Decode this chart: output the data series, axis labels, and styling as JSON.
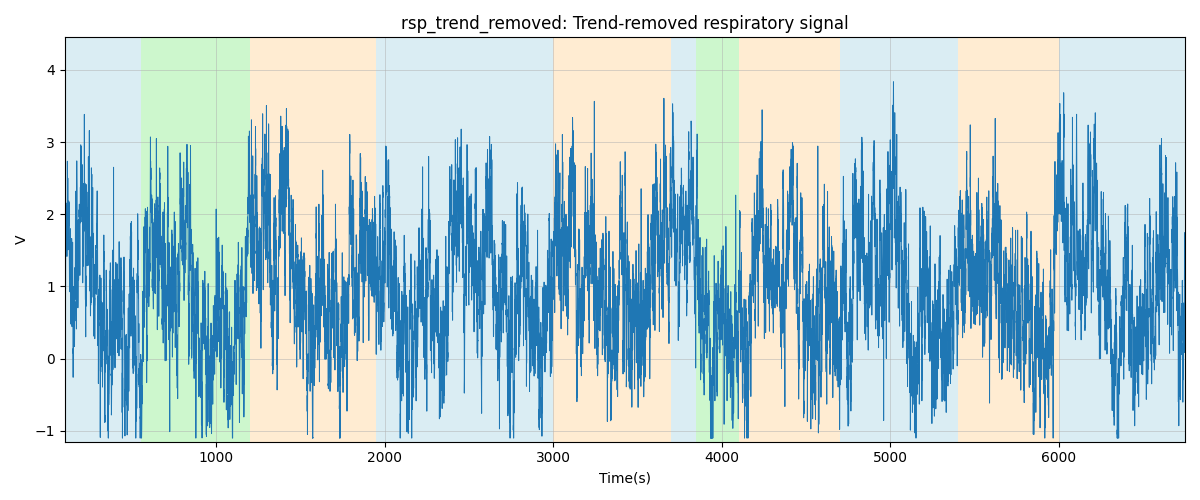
{
  "title": "rsp_trend_removed: Trend-removed respiratory signal",
  "xlabel": "Time(s)",
  "ylabel": "V",
  "xlim": [
    100,
    6750
  ],
  "ylim": [
    -1.15,
    4.45
  ],
  "signal_color": "#1f77b4",
  "signal_linewidth": 0.7,
  "bg_regions": [
    {
      "xmin": 100,
      "xmax": 550,
      "color": "#add8e6",
      "alpha": 0.45
    },
    {
      "xmin": 550,
      "xmax": 1200,
      "color": "#90ee90",
      "alpha": 0.45
    },
    {
      "xmin": 1200,
      "xmax": 1950,
      "color": "#ffdead",
      "alpha": 0.55
    },
    {
      "xmin": 1950,
      "xmax": 3000,
      "color": "#add8e6",
      "alpha": 0.45
    },
    {
      "xmin": 3000,
      "xmax": 3700,
      "color": "#ffdead",
      "alpha": 0.55
    },
    {
      "xmin": 3700,
      "xmax": 3850,
      "color": "#add8e6",
      "alpha": 0.45
    },
    {
      "xmin": 3850,
      "xmax": 4100,
      "color": "#90ee90",
      "alpha": 0.45
    },
    {
      "xmin": 4100,
      "xmax": 4700,
      "color": "#ffdead",
      "alpha": 0.55
    },
    {
      "xmin": 4700,
      "xmax": 5400,
      "color": "#add8e6",
      "alpha": 0.45
    },
    {
      "xmin": 5400,
      "xmax": 6000,
      "color": "#ffdead",
      "alpha": 0.55
    },
    {
      "xmin": 6000,
      "xmax": 6750,
      "color": "#add8e6",
      "alpha": 0.45
    }
  ],
  "grid_color": "#b0b0b0",
  "grid_alpha": 0.7,
  "grid_linewidth": 0.5,
  "yticks": [
    -1,
    0,
    1,
    2,
    3,
    4
  ],
  "xticks": [
    1000,
    2000,
    3000,
    4000,
    5000,
    6000
  ],
  "figsize": [
    12,
    5
  ],
  "dpi": 100
}
